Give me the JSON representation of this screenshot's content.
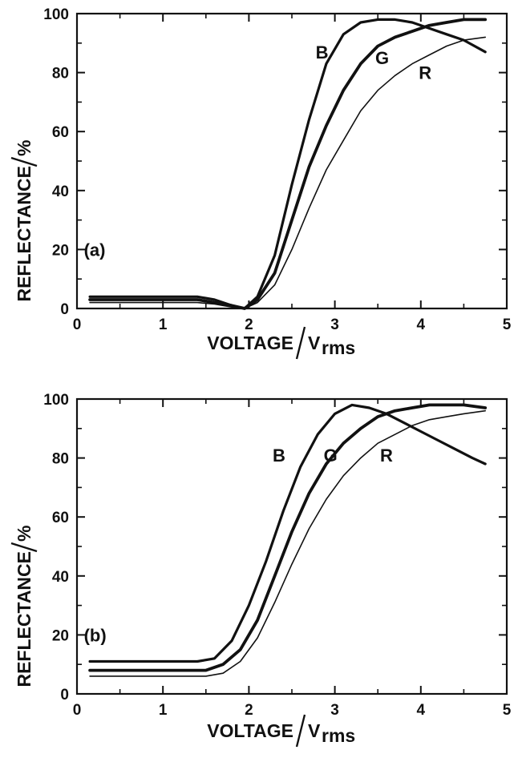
{
  "chart_data": [
    {
      "type": "line",
      "panel_label": "(a)",
      "xlabel": "VOLTAGE",
      "xlabel_unit": "V",
      "xlabel_unit_sub": "rms",
      "ylabel": "REFLECTANCE",
      "ylabel_unit": "%",
      "xlim": [
        0,
        5
      ],
      "ylim": [
        0,
        100
      ],
      "xticks": [
        "0",
        "1",
        "2",
        "3",
        "4",
        "5"
      ],
      "yticks": [
        "0",
        "20",
        "40",
        "60",
        "80",
        "100"
      ],
      "grid": false,
      "series": [
        {
          "name": "B",
          "label_pos": [
            2.85,
            87
          ],
          "points": [
            [
              0.15,
              4
            ],
            [
              0.5,
              4
            ],
            [
              1.0,
              4
            ],
            [
              1.4,
              4
            ],
            [
              1.6,
              3
            ],
            [
              1.8,
              1
            ],
            [
              1.95,
              0
            ],
            [
              2.1,
              4
            ],
            [
              2.3,
              18
            ],
            [
              2.5,
              42
            ],
            [
              2.7,
              64
            ],
            [
              2.9,
              83
            ],
            [
              3.1,
              93
            ],
            [
              3.3,
              97
            ],
            [
              3.5,
              98
            ],
            [
              3.7,
              98
            ],
            [
              3.9,
              97
            ],
            [
              4.1,
              95
            ],
            [
              4.3,
              93
            ],
            [
              4.5,
              91
            ],
            [
              4.75,
              87
            ]
          ]
        },
        {
          "name": "G",
          "label_pos": [
            3.55,
            85
          ],
          "points": [
            [
              0.15,
              3
            ],
            [
              0.5,
              3
            ],
            [
              1.0,
              3
            ],
            [
              1.4,
              3
            ],
            [
              1.6,
              2
            ],
            [
              1.8,
              1
            ],
            [
              1.95,
              0
            ],
            [
              2.1,
              3
            ],
            [
              2.3,
              12
            ],
            [
              2.5,
              30
            ],
            [
              2.7,
              48
            ],
            [
              2.9,
              62
            ],
            [
              3.1,
              74
            ],
            [
              3.3,
              83
            ],
            [
              3.5,
              89
            ],
            [
              3.7,
              92
            ],
            [
              3.9,
              94
            ],
            [
              4.1,
              96
            ],
            [
              4.3,
              97
            ],
            [
              4.5,
              98
            ],
            [
              4.75,
              98
            ]
          ]
        },
        {
          "name": "R",
          "label_pos": [
            4.05,
            80
          ],
          "points": [
            [
              0.15,
              2
            ],
            [
              0.5,
              2
            ],
            [
              1.0,
              2
            ],
            [
              1.4,
              2
            ],
            [
              1.6,
              1.5
            ],
            [
              1.8,
              0.5
            ],
            [
              1.95,
              0
            ],
            [
              2.1,
              2
            ],
            [
              2.3,
              8
            ],
            [
              2.5,
              20
            ],
            [
              2.7,
              34
            ],
            [
              2.9,
              47
            ],
            [
              3.1,
              57
            ],
            [
              3.3,
              67
            ],
            [
              3.5,
              74
            ],
            [
              3.7,
              79
            ],
            [
              3.9,
              83
            ],
            [
              4.1,
              86
            ],
            [
              4.3,
              89
            ],
            [
              4.5,
              91
            ],
            [
              4.75,
              92
            ]
          ]
        }
      ]
    },
    {
      "type": "line",
      "panel_label": "(b)",
      "xlabel": "VOLTAGE",
      "xlabel_unit": "V",
      "xlabel_unit_sub": "rms",
      "ylabel": "REFLECTANCE",
      "ylabel_unit": "%",
      "xlim": [
        0,
        5
      ],
      "ylim": [
        0,
        100
      ],
      "xticks": [
        "0",
        "1",
        "2",
        "3",
        "4",
        "5"
      ],
      "yticks": [
        "0",
        "20",
        "40",
        "60",
        "80",
        "100"
      ],
      "grid": false,
      "series": [
        {
          "name": "B",
          "label_pos": [
            2.35,
            81
          ],
          "points": [
            [
              0.15,
              11
            ],
            [
              0.5,
              11
            ],
            [
              1.0,
              11
            ],
            [
              1.4,
              11
            ],
            [
              1.6,
              12
            ],
            [
              1.8,
              18
            ],
            [
              2.0,
              30
            ],
            [
              2.2,
              45
            ],
            [
              2.4,
              62
            ],
            [
              2.6,
              77
            ],
            [
              2.8,
              88
            ],
            [
              3.0,
              95
            ],
            [
              3.2,
              98
            ],
            [
              3.4,
              97
            ],
            [
              3.6,
              95
            ],
            [
              3.8,
              92
            ],
            [
              4.0,
              89
            ],
            [
              4.2,
              86
            ],
            [
              4.4,
              83
            ],
            [
              4.6,
              80
            ],
            [
              4.75,
              78
            ]
          ]
        },
        {
          "name": "G",
          "label_pos": [
            2.95,
            81
          ],
          "points": [
            [
              0.15,
              8
            ],
            [
              0.5,
              8
            ],
            [
              1.0,
              8
            ],
            [
              1.5,
              8
            ],
            [
              1.7,
              10
            ],
            [
              1.9,
              15
            ],
            [
              2.1,
              25
            ],
            [
              2.3,
              40
            ],
            [
              2.5,
              55
            ],
            [
              2.7,
              68
            ],
            [
              2.9,
              78
            ],
            [
              3.1,
              85
            ],
            [
              3.3,
              90
            ],
            [
              3.5,
              94
            ],
            [
              3.7,
              96
            ],
            [
              3.9,
              97
            ],
            [
              4.1,
              98
            ],
            [
              4.3,
              98
            ],
            [
              4.5,
              98
            ],
            [
              4.75,
              97
            ]
          ]
        },
        {
          "name": "R",
          "label_pos": [
            3.6,
            81
          ],
          "points": [
            [
              0.15,
              6
            ],
            [
              0.5,
              6
            ],
            [
              1.0,
              6
            ],
            [
              1.5,
              6
            ],
            [
              1.7,
              7
            ],
            [
              1.9,
              11
            ],
            [
              2.1,
              19
            ],
            [
              2.3,
              31
            ],
            [
              2.5,
              44
            ],
            [
              2.7,
              56
            ],
            [
              2.9,
              66
            ],
            [
              3.1,
              74
            ],
            [
              3.3,
              80
            ],
            [
              3.5,
              85
            ],
            [
              3.7,
              88
            ],
            [
              3.9,
              91
            ],
            [
              4.1,
              93
            ],
            [
              4.3,
              94
            ],
            [
              4.5,
              95
            ],
            [
              4.75,
              96
            ]
          ]
        }
      ]
    }
  ]
}
